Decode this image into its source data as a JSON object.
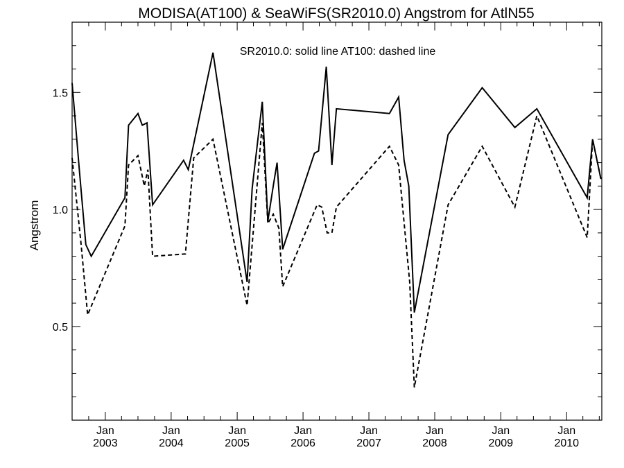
{
  "chart_data": {
    "type": "line",
    "title": "MODISA(AT100) & SeaWiFS(SR2010.0)  Angstrom for AtlN55",
    "annotation": "SR2010.0: solid line   AT100: dashed line",
    "xlabel": "",
    "ylabel": "Angstrom",
    "xlim": [
      "2002-07-01",
      "2010-07-15"
    ],
    "ylim": [
      0.1,
      1.8
    ],
    "yticks": [
      0.5,
      1.0,
      1.5
    ],
    "ytick_labels": [
      "0.5",
      "1.0",
      "1.5"
    ],
    "xticks": [
      {
        "date": "2003-01-01",
        "month": "Jan",
        "year": "2003"
      },
      {
        "date": "2004-01-01",
        "month": "Jan",
        "year": "2004"
      },
      {
        "date": "2005-01-01",
        "month": "Jan",
        "year": "2005"
      },
      {
        "date": "2006-01-01",
        "month": "Jan",
        "year": "2006"
      },
      {
        "date": "2007-01-01",
        "month": "Jan",
        "year": "2007"
      },
      {
        "date": "2008-01-01",
        "month": "Jan",
        "year": "2008"
      },
      {
        "date": "2009-01-01",
        "month": "Jan",
        "year": "2009"
      },
      {
        "date": "2010-01-01",
        "month": "Jan",
        "year": "2010"
      }
    ],
    "series": [
      {
        "name": "SR2010.0",
        "style": "solid",
        "points": [
          [
            "2002-07-01",
            1.54
          ],
          [
            "2002-08-10",
            1.17
          ],
          [
            "2002-09-15",
            0.85
          ],
          [
            "2002-10-15",
            0.8
          ],
          [
            "2003-04-20",
            1.05
          ],
          [
            "2003-05-10",
            1.36
          ],
          [
            "2003-07-01",
            1.41
          ],
          [
            "2003-07-25",
            1.36
          ],
          [
            "2003-08-20",
            1.37
          ],
          [
            "2003-09-20",
            1.02
          ],
          [
            "2004-03-10",
            1.21
          ],
          [
            "2004-04-05",
            1.17
          ],
          [
            "2004-08-20",
            1.67
          ],
          [
            "2005-02-25",
            0.69
          ],
          [
            "2005-03-25",
            1.09
          ],
          [
            "2005-05-20",
            1.46
          ],
          [
            "2005-06-20",
            0.95
          ],
          [
            "2005-07-20",
            1.1
          ],
          [
            "2005-08-10",
            1.2
          ],
          [
            "2005-09-10",
            0.83
          ],
          [
            "2006-03-05",
            1.24
          ],
          [
            "2006-03-28",
            1.25
          ],
          [
            "2006-05-10",
            1.61
          ],
          [
            "2006-06-10",
            1.19
          ],
          [
            "2006-07-05",
            1.43
          ],
          [
            "2007-04-25",
            1.41
          ],
          [
            "2007-06-15",
            1.48
          ],
          [
            "2007-07-15",
            1.21
          ],
          [
            "2007-08-10",
            1.1
          ],
          [
            "2007-09-10",
            0.56
          ],
          [
            "2008-03-15",
            1.32
          ],
          [
            "2008-09-20",
            1.52
          ],
          [
            "2009-03-20",
            1.35
          ],
          [
            "2009-07-20",
            1.43
          ],
          [
            "2010-04-25",
            1.05
          ],
          [
            "2010-05-25",
            1.3
          ],
          [
            "2010-07-10",
            1.13
          ]
        ]
      },
      {
        "name": "AT100",
        "style": "dashed",
        "points": [
          [
            "2002-07-01",
            1.22
          ],
          [
            "2002-08-20",
            0.85
          ],
          [
            "2002-09-25",
            0.55
          ],
          [
            "2003-04-20",
            0.93
          ],
          [
            "2003-05-10",
            1.19
          ],
          [
            "2003-07-01",
            1.23
          ],
          [
            "2003-08-05",
            1.1
          ],
          [
            "2003-08-25",
            1.17
          ],
          [
            "2003-09-20",
            0.8
          ],
          [
            "2004-03-20",
            0.81
          ],
          [
            "2004-05-05",
            1.22
          ],
          [
            "2004-08-20",
            1.3
          ],
          [
            "2005-02-25",
            0.59
          ],
          [
            "2005-05-20",
            1.37
          ],
          [
            "2005-06-20",
            0.94
          ],
          [
            "2005-07-20",
            0.98
          ],
          [
            "2005-08-20",
            0.92
          ],
          [
            "2005-09-10",
            0.67
          ],
          [
            "2006-03-20",
            1.02
          ],
          [
            "2006-04-15",
            1.01
          ],
          [
            "2006-05-15",
            0.9
          ],
          [
            "2006-06-10",
            0.9
          ],
          [
            "2006-07-05",
            1.01
          ],
          [
            "2007-04-25",
            1.27
          ],
          [
            "2007-06-15",
            1.19
          ],
          [
            "2007-08-15",
            0.69
          ],
          [
            "2007-09-10",
            0.24
          ],
          [
            "2008-03-15",
            1.02
          ],
          [
            "2008-09-20",
            1.27
          ],
          [
            "2009-03-20",
            1.01
          ],
          [
            "2009-07-20",
            1.4
          ],
          [
            "2010-04-25",
            0.88
          ],
          [
            "2010-05-25",
            1.3
          ],
          [
            "2010-07-10",
            1.13
          ]
        ]
      }
    ]
  }
}
